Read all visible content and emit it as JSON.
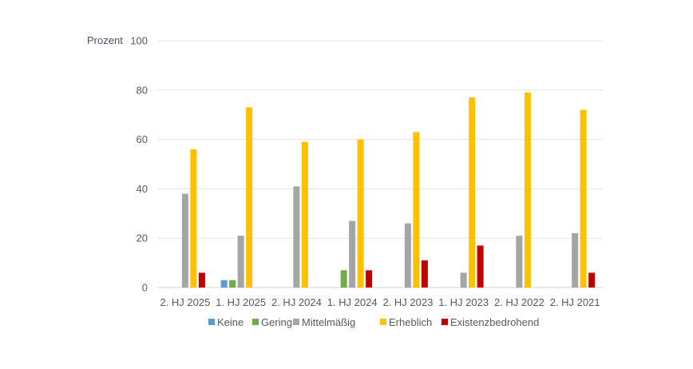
{
  "chart_data": {
    "type": "bar",
    "title": "",
    "xlabel": "",
    "ylabel": "Prozent",
    "ylim": [
      0,
      100
    ],
    "yticks": [
      0,
      20,
      40,
      60,
      80,
      100
    ],
    "grid": true,
    "legend_position": "bottom",
    "categories": [
      "2. HJ 2025",
      "1. HJ 2025",
      "2. HJ 2024",
      "1. HJ 2024",
      "2. HJ 2023",
      "1. HJ 2023",
      "2. HJ 2022",
      "2. HJ 2021"
    ],
    "series": [
      {
        "name": "Keine",
        "color": "#5B9BD5",
        "values": [
          0,
          3,
          0,
          0,
          0,
          0,
          0,
          0
        ]
      },
      {
        "name": "Gering",
        "color": "#70AD47",
        "values": [
          0,
          3,
          0,
          7,
          0,
          0,
          0,
          0
        ]
      },
      {
        "name": "Mittelmäßig",
        "color": "#A5A5A5",
        "values": [
          38,
          21,
          41,
          27,
          26,
          6,
          21,
          22
        ]
      },
      {
        "name": "Erheblich",
        "color": "#FFC000",
        "values": [
          56,
          73,
          59,
          60,
          63,
          77,
          79,
          72
        ]
      },
      {
        "name": "Existenzbedrohend",
        "color": "#C00000",
        "values": [
          6,
          0,
          0,
          7,
          11,
          17,
          0,
          6
        ]
      }
    ]
  }
}
